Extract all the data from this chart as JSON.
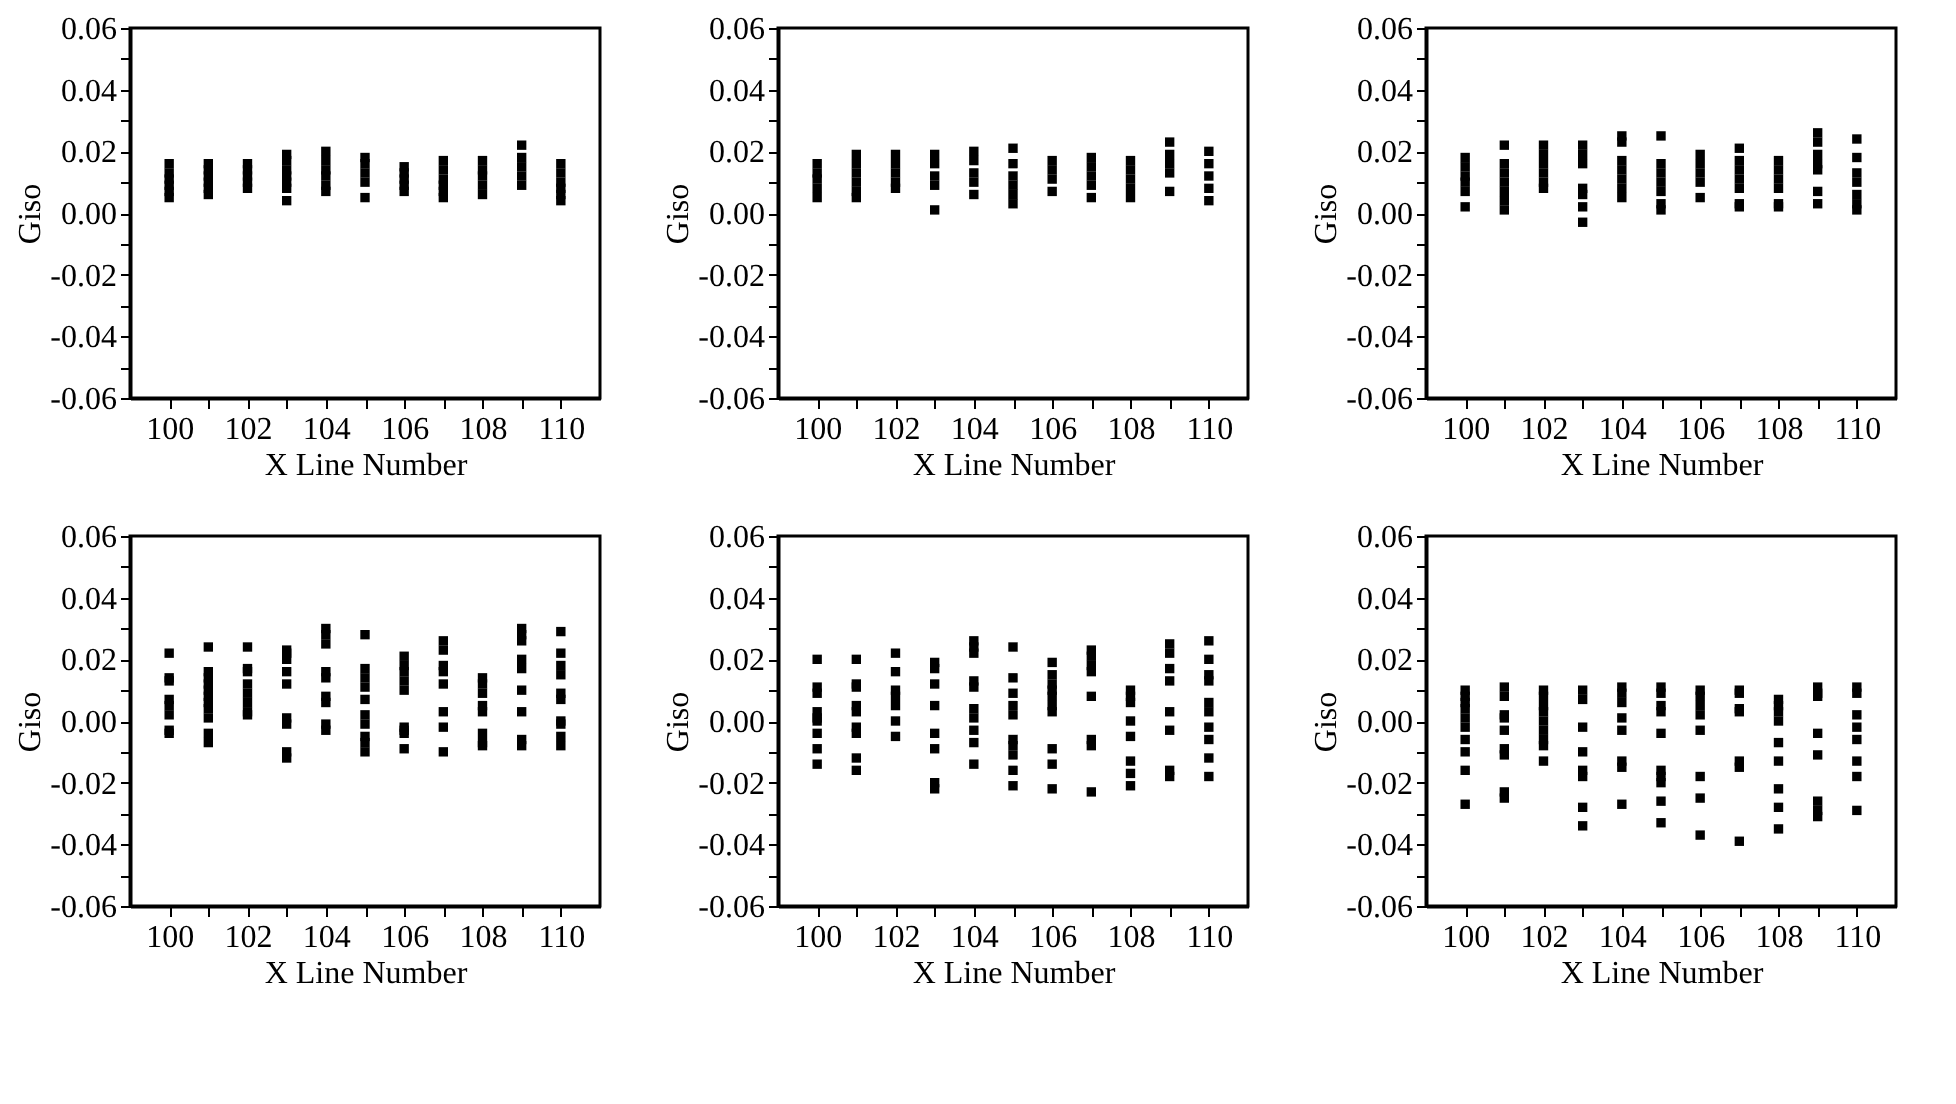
{
  "chart_data": [
    {
      "type": "scatter",
      "xlabel": "X Line Number",
      "ylabel": "Giso",
      "xlim": [
        99,
        111
      ],
      "ylim": [
        -0.06,
        0.06
      ],
      "marker": "square",
      "grid": false,
      "legend": false,
      "xticks": [
        100,
        {
          "value": 101,
          "label": null
        },
        102,
        {
          "value": 103,
          "label": null
        },
        104,
        {
          "value": 105,
          "label": null
        },
        106,
        {
          "value": 107,
          "label": null
        },
        108,
        {
          "value": 109,
          "label": null
        },
        110
      ],
      "yticks": [
        {
          "value": -0.06,
          "label": "-0.06"
        },
        {
          "value": -0.05,
          "label": null
        },
        {
          "value": -0.04,
          "label": "-0.04"
        },
        {
          "value": -0.03,
          "label": null
        },
        {
          "value": -0.02,
          "label": "-0.02"
        },
        {
          "value": -0.01,
          "label": null
        },
        {
          "value": 0,
          "label": "0.00"
        },
        {
          "value": 0.01,
          "label": null
        },
        {
          "value": 0.02,
          "label": "0.02"
        },
        {
          "value": 0.03,
          "label": null
        },
        {
          "value": 0.04,
          "label": "0.04"
        },
        {
          "value": 0.05,
          "label": null
        },
        {
          "value": 0.06,
          "label": "0.06"
        }
      ],
      "series": [
        {
          "color": "#000000",
          "x": [
            100,
            100,
            100,
            100,
            100,
            100,
            101,
            101,
            101,
            101,
            101,
            101,
            102,
            102,
            102,
            102,
            102,
            103,
            103,
            103,
            103,
            103,
            103,
            103,
            104,
            104,
            104,
            104,
            104,
            104,
            105,
            105,
            105,
            105,
            105,
            106,
            106,
            106,
            106,
            106,
            107,
            107,
            107,
            107,
            107,
            107,
            108,
            108,
            108,
            108,
            108,
            109,
            109,
            109,
            109,
            109,
            110,
            110,
            110,
            110,
            110,
            110
          ],
          "values": [
            0.016,
            0.013,
            0.011,
            0.009,
            0.007,
            0.005,
            0.016,
            0.014,
            0.012,
            0.01,
            0.008,
            0.006,
            0.016,
            0.014,
            0.012,
            0.01,
            0.008,
            0.019,
            0.017,
            0.014,
            0.012,
            0.01,
            0.008,
            0.004,
            0.02,
            0.017,
            0.014,
            0.012,
            0.009,
            0.007,
            0.018,
            0.016,
            0.013,
            0.01,
            0.005,
            0.015,
            0.013,
            0.011,
            0.009,
            0.007,
            0.017,
            0.014,
            0.011,
            0.009,
            0.007,
            0.005,
            0.017,
            0.014,
            0.012,
            0.009,
            0.006,
            0.022,
            0.018,
            0.015,
            0.012,
            0.009,
            0.016,
            0.013,
            0.01,
            0.008,
            0.006,
            0.004
          ]
        }
      ]
    },
    {
      "type": "scatter",
      "xlabel": "X Line Number",
      "ylabel": "Giso",
      "xlim": [
        99,
        111
      ],
      "ylim": [
        -0.06,
        0.06
      ],
      "marker": "square",
      "grid": false,
      "legend": false,
      "xticks": [
        100,
        {
          "value": 101,
          "label": null
        },
        102,
        {
          "value": 103,
          "label": null
        },
        104,
        {
          "value": 105,
          "label": null
        },
        106,
        {
          "value": 107,
          "label": null
        },
        108,
        {
          "value": 109,
          "label": null
        },
        110
      ],
      "yticks": [
        {
          "value": -0.06,
          "label": "-0.06"
        },
        {
          "value": -0.05,
          "label": null
        },
        {
          "value": -0.04,
          "label": "-0.04"
        },
        {
          "value": -0.03,
          "label": null
        },
        {
          "value": -0.02,
          "label": "-0.02"
        },
        {
          "value": -0.01,
          "label": null
        },
        {
          "value": 0,
          "label": "0.00"
        },
        {
          "value": 0.01,
          "label": null
        },
        {
          "value": 0.02,
          "label": "0.02"
        },
        {
          "value": 0.03,
          "label": null
        },
        {
          "value": 0.04,
          "label": "0.04"
        },
        {
          "value": 0.05,
          "label": null
        },
        {
          "value": 0.06,
          "label": "0.06"
        }
      ],
      "series": [
        {
          "color": "#000000",
          "x": [
            100,
            100,
            100,
            100,
            100,
            101,
            101,
            101,
            101,
            101,
            101,
            102,
            102,
            102,
            102,
            102,
            103,
            103,
            103,
            103,
            103,
            104,
            104,
            104,
            104,
            104,
            105,
            105,
            105,
            105,
            105,
            105,
            106,
            106,
            106,
            106,
            107,
            107,
            107,
            107,
            107,
            108,
            108,
            108,
            108,
            108,
            109,
            109,
            109,
            109,
            109,
            110,
            110,
            110,
            110,
            110
          ],
          "values": [
            0.016,
            0.013,
            0.011,
            0.008,
            0.005,
            0.019,
            0.016,
            0.013,
            0.01,
            0.007,
            0.005,
            0.019,
            0.016,
            0.013,
            0.01,
            0.008,
            0.019,
            0.016,
            0.012,
            0.009,
            0.001,
            0.02,
            0.017,
            0.013,
            0.01,
            0.006,
            0.021,
            0.016,
            0.012,
            0.009,
            0.006,
            0.003,
            0.017,
            0.014,
            0.011,
            0.007,
            0.018,
            0.015,
            0.012,
            0.009,
            0.005,
            0.017,
            0.014,
            0.011,
            0.008,
            0.005,
            0.023,
            0.019,
            0.016,
            0.013,
            0.007,
            0.02,
            0.016,
            0.012,
            0.008,
            0.004
          ]
        }
      ]
    },
    {
      "type": "scatter",
      "xlabel": "X Line Number",
      "ylabel": "Giso",
      "xlim": [
        99,
        111
      ],
      "ylim": [
        -0.06,
        0.06
      ],
      "marker": "square",
      "grid": false,
      "legend": false,
      "xticks": [
        100,
        {
          "value": 101,
          "label": null
        },
        102,
        {
          "value": 103,
          "label": null
        },
        104,
        {
          "value": 105,
          "label": null
        },
        106,
        {
          "value": 107,
          "label": null
        },
        108,
        {
          "value": 109,
          "label": null
        },
        110
      ],
      "yticks": [
        {
          "value": -0.06,
          "label": "-0.06"
        },
        {
          "value": -0.05,
          "label": null
        },
        {
          "value": -0.04,
          "label": "-0.04"
        },
        {
          "value": -0.03,
          "label": null
        },
        {
          "value": -0.02,
          "label": "-0.02"
        },
        {
          "value": -0.01,
          "label": null
        },
        {
          "value": 0,
          "label": "0.00"
        },
        {
          "value": 0.01,
          "label": null
        },
        {
          "value": 0.02,
          "label": "0.02"
        },
        {
          "value": 0.03,
          "label": null
        },
        {
          "value": 0.04,
          "label": "0.04"
        },
        {
          "value": 0.05,
          "label": null
        },
        {
          "value": 0.06,
          "label": "0.06"
        }
      ],
      "series": [
        {
          "color": "#000000",
          "x": [
            100,
            100,
            100,
            100,
            100,
            100,
            101,
            101,
            101,
            101,
            101,
            101,
            101,
            102,
            102,
            102,
            102,
            102,
            102,
            103,
            103,
            103,
            103,
            103,
            103,
            103,
            104,
            104,
            104,
            104,
            104,
            104,
            104,
            105,
            105,
            105,
            105,
            105,
            105,
            105,
            106,
            106,
            106,
            106,
            106,
            107,
            107,
            107,
            107,
            107,
            107,
            107,
            108,
            108,
            108,
            108,
            108,
            108,
            109,
            109,
            109,
            109,
            109,
            109,
            109,
            110,
            110,
            110,
            110,
            110,
            110,
            110
          ],
          "values": [
            0.018,
            0.015,
            0.012,
            0.01,
            0.007,
            0.002,
            0.022,
            0.016,
            0.013,
            0.01,
            0.007,
            0.004,
            0.001,
            0.022,
            0.019,
            0.016,
            0.013,
            0.01,
            0.008,
            0.022,
            0.019,
            0.016,
            0.008,
            0.006,
            0.002,
            -0.003,
            0.025,
            0.023,
            0.017,
            0.014,
            0.011,
            0.008,
            0.005,
            0.025,
            0.016,
            0.013,
            0.01,
            0.007,
            0.003,
            0.001,
            0.019,
            0.016,
            0.013,
            0.01,
            0.005,
            0.021,
            0.017,
            0.014,
            0.011,
            0.008,
            0.003,
            0.002,
            0.017,
            0.014,
            0.011,
            0.008,
            0.003,
            0.002,
            0.026,
            0.023,
            0.019,
            0.016,
            0.014,
            0.007,
            0.003,
            0.024,
            0.018,
            0.013,
            0.01,
            0.006,
            0.003,
            0.001
          ]
        }
      ]
    },
    {
      "type": "scatter",
      "xlabel": "X Line Number",
      "ylabel": "Giso",
      "xlim": [
        99,
        111
      ],
      "ylim": [
        -0.06,
        0.06
      ],
      "marker": "square",
      "grid": false,
      "legend": false,
      "xticks": [
        100,
        {
          "value": 101,
          "label": null
        },
        102,
        {
          "value": 103,
          "label": null
        },
        104,
        {
          "value": 105,
          "label": null
        },
        106,
        {
          "value": 107,
          "label": null
        },
        108,
        {
          "value": 109,
          "label": null
        },
        110
      ],
      "yticks": [
        {
          "value": -0.06,
          "label": "-0.06"
        },
        {
          "value": -0.05,
          "label": null
        },
        {
          "value": -0.04,
          "label": "-0.04"
        },
        {
          "value": -0.03,
          "label": null
        },
        {
          "value": -0.02,
          "label": "-0.02"
        },
        {
          "value": -0.01,
          "label": null
        },
        {
          "value": 0,
          "label": "0.00"
        },
        {
          "value": 0.01,
          "label": null
        },
        {
          "value": 0.02,
          "label": "0.02"
        },
        {
          "value": 0.03,
          "label": null
        },
        {
          "value": 0.04,
          "label": "0.04"
        },
        {
          "value": 0.05,
          "label": null
        },
        {
          "value": 0.06,
          "label": "0.06"
        }
      ],
      "series": [
        {
          "color": "#000000",
          "x": [
            100,
            100,
            100,
            100,
            100,
            100,
            100,
            100,
            101,
            101,
            101,
            101,
            101,
            101,
            101,
            101,
            101,
            101,
            101,
            102,
            102,
            102,
            102,
            102,
            102,
            102,
            102,
            103,
            103,
            103,
            103,
            103,
            103,
            103,
            103,
            103,
            104,
            104,
            104,
            104,
            104,
            104,
            104,
            104,
            104,
            105,
            105,
            105,
            105,
            105,
            105,
            105,
            105,
            105,
            105,
            106,
            106,
            106,
            106,
            106,
            106,
            106,
            106,
            106,
            107,
            107,
            107,
            107,
            107,
            107,
            107,
            107,
            108,
            108,
            108,
            108,
            108,
            108,
            108,
            108,
            109,
            109,
            109,
            109,
            109,
            109,
            109,
            109,
            109,
            110,
            110,
            110,
            110,
            110,
            110,
            110,
            110,
            110,
            110
          ],
          "values": [
            0.022,
            0.014,
            0.013,
            0.007,
            0.005,
            0.002,
            -0.003,
            -0.004,
            0.024,
            0.016,
            0.014,
            0.012,
            0.01,
            0.008,
            0.006,
            0.004,
            0.001,
            -0.004,
            -0.007,
            0.024,
            0.017,
            0.016,
            0.012,
            0.009,
            0.006,
            0.003,
            0.002,
            0.023,
            0.022,
            0.02,
            0.016,
            0.012,
            0.001,
            -0.001,
            -0.01,
            -0.012,
            0.03,
            0.028,
            0.025,
            0.016,
            0.014,
            0.008,
            0.006,
            -0.001,
            -0.003,
            0.028,
            0.017,
            0.014,
            0.011,
            0.007,
            0.002,
            -0.001,
            -0.005,
            -0.007,
            -0.01,
            0.021,
            0.018,
            0.016,
            0.013,
            0.01,
            -0.002,
            -0.003,
            -0.004,
            -0.009,
            0.026,
            0.023,
            0.018,
            0.016,
            0.012,
            0.003,
            -0.002,
            -0.01,
            0.014,
            0.012,
            0.009,
            0.005,
            0.003,
            -0.004,
            -0.007,
            -0.008,
            0.03,
            0.028,
            0.026,
            0.02,
            0.017,
            0.01,
            0.003,
            -0.006,
            -0.008,
            0.029,
            0.022,
            0.018,
            0.015,
            0.009,
            0.007,
            0.0,
            -0.001,
            -0.005,
            -0.008
          ]
        }
      ]
    },
    {
      "type": "scatter",
      "xlabel": "X Line Number",
      "ylabel": "Giso",
      "xlim": [
        99,
        111
      ],
      "ylim": [
        -0.06,
        0.06
      ],
      "marker": "square",
      "grid": false,
      "legend": false,
      "xticks": [
        100,
        {
          "value": 101,
          "label": null
        },
        102,
        {
          "value": 103,
          "label": null
        },
        104,
        {
          "value": 105,
          "label": null
        },
        106,
        {
          "value": 107,
          "label": null
        },
        108,
        {
          "value": 109,
          "label": null
        },
        110
      ],
      "yticks": [
        {
          "value": -0.06,
          "label": "-0.06"
        },
        {
          "value": -0.05,
          "label": null
        },
        {
          "value": -0.04,
          "label": "-0.04"
        },
        {
          "value": -0.03,
          "label": null
        },
        {
          "value": -0.02,
          "label": "-0.02"
        },
        {
          "value": -0.01,
          "label": null
        },
        {
          "value": 0,
          "label": "0.00"
        },
        {
          "value": 0.01,
          "label": null
        },
        {
          "value": 0.02,
          "label": "0.02"
        },
        {
          "value": 0.03,
          "label": null
        },
        {
          "value": 0.04,
          "label": "0.04"
        },
        {
          "value": 0.05,
          "label": null
        },
        {
          "value": 0.06,
          "label": "0.06"
        }
      ],
      "series": [
        {
          "color": "#000000",
          "x": [
            100,
            100,
            100,
            100,
            100,
            100,
            100,
            100,
            100,
            101,
            101,
            101,
            101,
            101,
            101,
            101,
            101,
            101,
            102,
            102,
            102,
            102,
            102,
            102,
            102,
            103,
            103,
            103,
            103,
            103,
            103,
            103,
            103,
            104,
            104,
            104,
            104,
            104,
            104,
            104,
            104,
            104,
            104,
            105,
            105,
            105,
            105,
            105,
            105,
            105,
            105,
            105,
            105,
            106,
            106,
            106,
            106,
            106,
            106,
            106,
            106,
            106,
            106,
            107,
            107,
            107,
            107,
            107,
            107,
            107,
            107,
            108,
            108,
            108,
            108,
            108,
            108,
            108,
            108,
            109,
            109,
            109,
            109,
            109,
            109,
            109,
            109,
            110,
            110,
            110,
            110,
            110,
            110,
            110,
            110,
            110,
            110
          ],
          "values": [
            0.02,
            0.011,
            0.009,
            0.003,
            0.001,
            0.0,
            -0.004,
            -0.009,
            -0.014,
            0.02,
            0.012,
            0.011,
            0.005,
            0.003,
            -0.002,
            -0.004,
            -0.012,
            -0.016,
            0.022,
            0.016,
            0.01,
            0.008,
            0.005,
            0.0,
            -0.005,
            0.019,
            0.017,
            0.012,
            0.005,
            -0.004,
            -0.009,
            -0.02,
            -0.022,
            0.026,
            0.024,
            0.022,
            0.013,
            0.011,
            0.004,
            0.001,
            -0.003,
            -0.007,
            -0.014,
            0.024,
            0.014,
            0.009,
            0.005,
            0.002,
            -0.006,
            -0.008,
            -0.011,
            -0.016,
            -0.021,
            0.019,
            0.015,
            0.012,
            0.01,
            0.008,
            0.005,
            0.003,
            -0.009,
            -0.014,
            -0.022,
            0.023,
            0.021,
            0.018,
            0.016,
            0.008,
            -0.006,
            -0.008,
            -0.023,
            0.01,
            0.008,
            0.006,
            0.0,
            -0.005,
            -0.013,
            -0.017,
            -0.021,
            0.025,
            0.022,
            0.017,
            0.013,
            0.003,
            -0.003,
            -0.016,
            -0.018,
            0.026,
            0.02,
            0.015,
            0.013,
            0.006,
            0.003,
            -0.002,
            -0.006,
            -0.012,
            -0.018
          ]
        }
      ]
    },
    {
      "type": "scatter",
      "xlabel": "X Line Number",
      "ylabel": "Giso",
      "xlim": [
        99,
        111
      ],
      "ylim": [
        -0.06,
        0.06
      ],
      "marker": "square",
      "grid": false,
      "legend": false,
      "xticks": [
        100,
        {
          "value": 101,
          "label": null
        },
        102,
        {
          "value": 103,
          "label": null
        },
        104,
        {
          "value": 105,
          "label": null
        },
        106,
        {
          "value": 107,
          "label": null
        },
        108,
        {
          "value": 109,
          "label": null
        },
        110
      ],
      "yticks": [
        {
          "value": -0.06,
          "label": "-0.06"
        },
        {
          "value": -0.05,
          "label": null
        },
        {
          "value": -0.04,
          "label": "-0.04"
        },
        {
          "value": -0.03,
          "label": null
        },
        {
          "value": -0.02,
          "label": "-0.02"
        },
        {
          "value": -0.01,
          "label": null
        },
        {
          "value": 0,
          "label": "0.00"
        },
        {
          "value": 0.01,
          "label": null
        },
        {
          "value": 0.02,
          "label": "0.02"
        },
        {
          "value": 0.03,
          "label": null
        },
        {
          "value": 0.04,
          "label": "0.04"
        },
        {
          "value": 0.05,
          "label": null
        },
        {
          "value": 0.06,
          "label": "0.06"
        }
      ],
      "series": [
        {
          "color": "#000000",
          "x": [
            100,
            100,
            100,
            100,
            100,
            100,
            100,
            100,
            100,
            100,
            101,
            101,
            101,
            101,
            101,
            101,
            101,
            101,
            101,
            102,
            102,
            102,
            102,
            102,
            102,
            102,
            102,
            102,
            103,
            103,
            103,
            103,
            103,
            103,
            103,
            103,
            104,
            104,
            104,
            104,
            104,
            104,
            104,
            104,
            105,
            105,
            105,
            105,
            105,
            105,
            105,
            105,
            105,
            105,
            106,
            106,
            106,
            106,
            106,
            106,
            106,
            106,
            107,
            107,
            107,
            107,
            107,
            107,
            107,
            108,
            108,
            108,
            108,
            108,
            108,
            108,
            108,
            108,
            109,
            109,
            109,
            109,
            109,
            109,
            109,
            109,
            110,
            110,
            110,
            110,
            110,
            110,
            110,
            110
          ],
          "values": [
            0.01,
            0.008,
            0.006,
            0.004,
            0.001,
            -0.002,
            -0.006,
            -0.01,
            -0.016,
            -0.027,
            0.011,
            0.008,
            0.002,
            0.001,
            -0.003,
            -0.009,
            -0.011,
            -0.023,
            -0.025,
            0.01,
            0.008,
            0.005,
            0.003,
            0.0,
            -0.003,
            -0.006,
            -0.008,
            -0.013,
            0.01,
            0.007,
            -0.002,
            -0.01,
            -0.016,
            -0.018,
            -0.028,
            -0.034,
            0.011,
            0.009,
            0.006,
            0.001,
            -0.003,
            -0.013,
            -0.015,
            -0.027,
            0.011,
            0.009,
            0.005,
            0.003,
            -0.004,
            -0.016,
            -0.018,
            -0.02,
            -0.026,
            -0.033,
            0.01,
            0.008,
            0.005,
            0.002,
            -0.003,
            -0.018,
            -0.025,
            -0.037,
            0.01,
            0.009,
            0.004,
            0.003,
            -0.013,
            -0.015,
            -0.039,
            0.007,
            0.005,
            0.003,
            0.0,
            -0.007,
            -0.013,
            -0.022,
            -0.028,
            -0.035,
            0.011,
            0.009,
            0.008,
            -0.004,
            -0.011,
            -0.026,
            -0.029,
            -0.031,
            0.011,
            0.009,
            0.002,
            -0.002,
            -0.006,
            -0.013,
            -0.018,
            -0.029
          ]
        }
      ]
    }
  ]
}
